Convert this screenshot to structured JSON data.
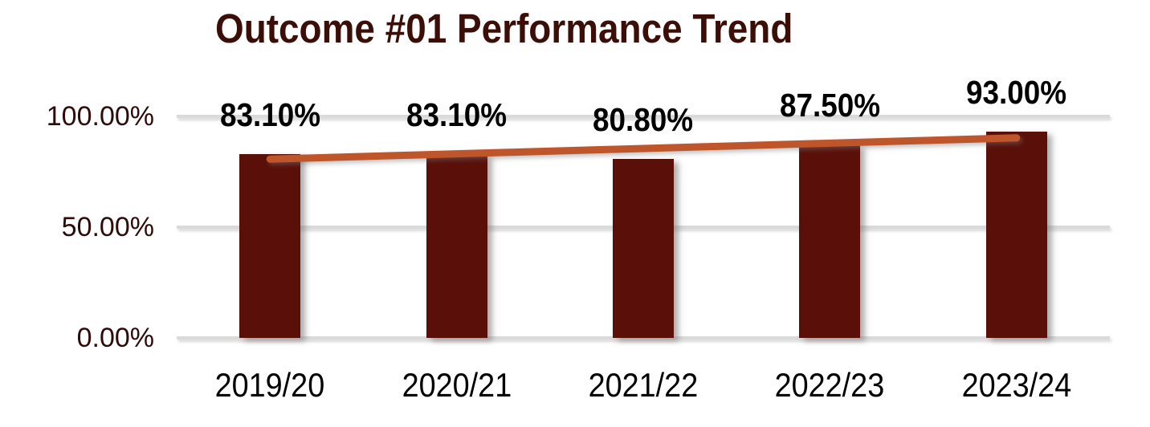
{
  "chart_data": {
    "type": "bar",
    "title": "Outcome #01 Performance Trend",
    "categories": [
      "2019/20",
      "2020/21",
      "2021/22",
      "2022/23",
      "2023/24"
    ],
    "values": [
      83.1,
      83.1,
      80.8,
      87.5,
      93.0
    ],
    "data_labels": [
      "83.10%",
      "83.10%",
      "80.80%",
      "87.50%",
      "93.00%"
    ],
    "y_axis": {
      "min": 0,
      "max": 100,
      "ticks": [
        {
          "label": "0.00%",
          "value": 0
        },
        {
          "label": "50.00%",
          "value": 50
        },
        {
          "label": "100.00%",
          "value": 100
        }
      ]
    },
    "grid": true,
    "legend": "none",
    "trendline": {
      "type": "linear",
      "start_value": 80.7,
      "end_value": 90.3
    },
    "colors": {
      "bar": "#5A0F08",
      "trendline": "#BE552B",
      "title": "#3B0E08",
      "y_tick_label": "#2E0B09",
      "x_tick_label": "#000000",
      "data_label": "#000000",
      "gridline": "#DADADA",
      "background": "#FFFFFF"
    }
  }
}
